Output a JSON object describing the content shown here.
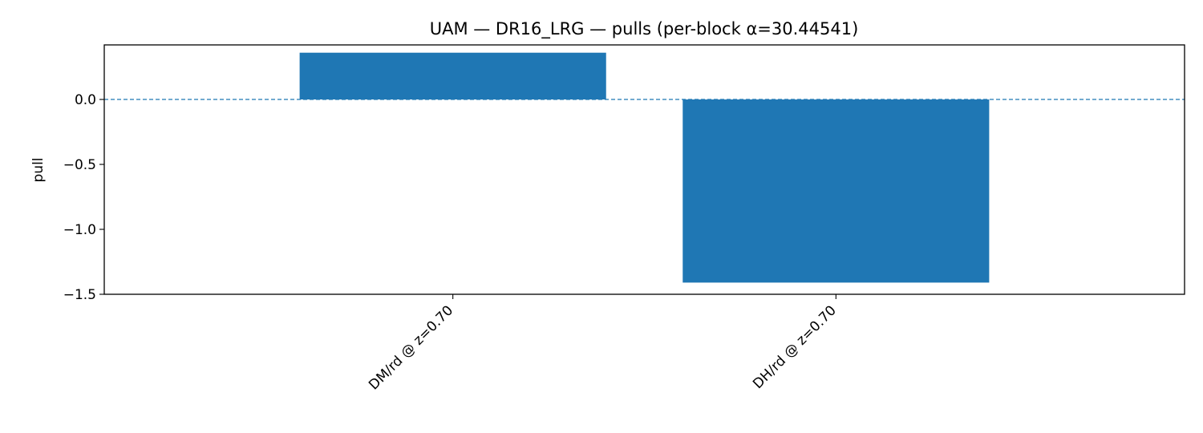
{
  "chart_data": {
    "type": "bar",
    "title": "UAM — DR16_LRG — pulls (per-block α=30.44541)",
    "xlabel": "",
    "ylabel": "pull",
    "categories": [
      "DM/rd @ z=0.70",
      "DH/rd @ z=0.70"
    ],
    "values": [
      0.36,
      -1.41
    ],
    "ylim": [
      -1.5,
      0.42
    ],
    "yticks": [
      0.0,
      -0.5,
      -1.0,
      -1.5
    ],
    "ytick_labels": [
      "0.0",
      "−0.5",
      "−1.0",
      "−1.5"
    ],
    "reference_line": 0.0,
    "bar_color": "#1f77b4",
    "grid": false,
    "legend": "none"
  }
}
